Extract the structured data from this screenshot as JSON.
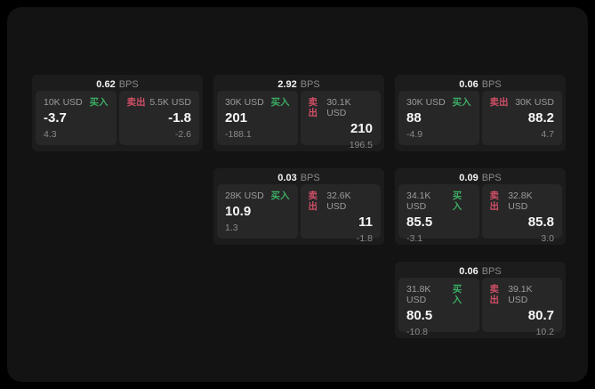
{
  "labels": {
    "bps_unit": "BPS",
    "buy": "买入",
    "sell": "卖出"
  },
  "colors": {
    "page_background": "#000000",
    "board_background": "#131313",
    "card_background": "#1c1c1c",
    "tile_background": "#272727",
    "buy_green": "#3cab64",
    "sell_red": "#cf4f66",
    "text_primary": "#f5f5f5",
    "text_secondary": "#9b9b9b"
  },
  "cards": [
    {
      "bps": "0.62",
      "col": 1,
      "row": 1,
      "buy": {
        "amount": "10K USD",
        "price": "-3.7",
        "change": "4.3"
      },
      "sell": {
        "amount": "5.5K USD",
        "price": "-1.8",
        "change": "-2.6"
      }
    },
    {
      "bps": "2.92",
      "col": 2,
      "row": 1,
      "buy": {
        "amount": "30K USD",
        "price": "201",
        "change": "-188.1"
      },
      "sell": {
        "amount": "30.1K USD",
        "price": "210",
        "change": "196.5"
      }
    },
    {
      "bps": "0.06",
      "col": 3,
      "row": 1,
      "buy": {
        "amount": "30K USD",
        "price": "88",
        "change": "-4.9"
      },
      "sell": {
        "amount": "30K USD",
        "price": "88.2",
        "change": "4.7"
      }
    },
    {
      "bps": "0.03",
      "col": 2,
      "row": 2,
      "buy": {
        "amount": "28K USD",
        "price": "10.9",
        "change": "1.3"
      },
      "sell": {
        "amount": "32.6K USD",
        "price": "11",
        "change": "-1.8"
      }
    },
    {
      "bps": "0.09",
      "col": 3,
      "row": 2,
      "buy": {
        "amount": "34.1K USD",
        "price": "85.5",
        "change": "-3.1"
      },
      "sell": {
        "amount": "32.8K USD",
        "price": "85.8",
        "change": "3.0"
      }
    },
    {
      "bps": "0.06",
      "col": 3,
      "row": 3,
      "buy": {
        "amount": "31.8K USD",
        "price": "80.5",
        "change": "-10.8"
      },
      "sell": {
        "amount": "39.1K USD",
        "price": "80.7",
        "change": "10.2"
      }
    }
  ]
}
